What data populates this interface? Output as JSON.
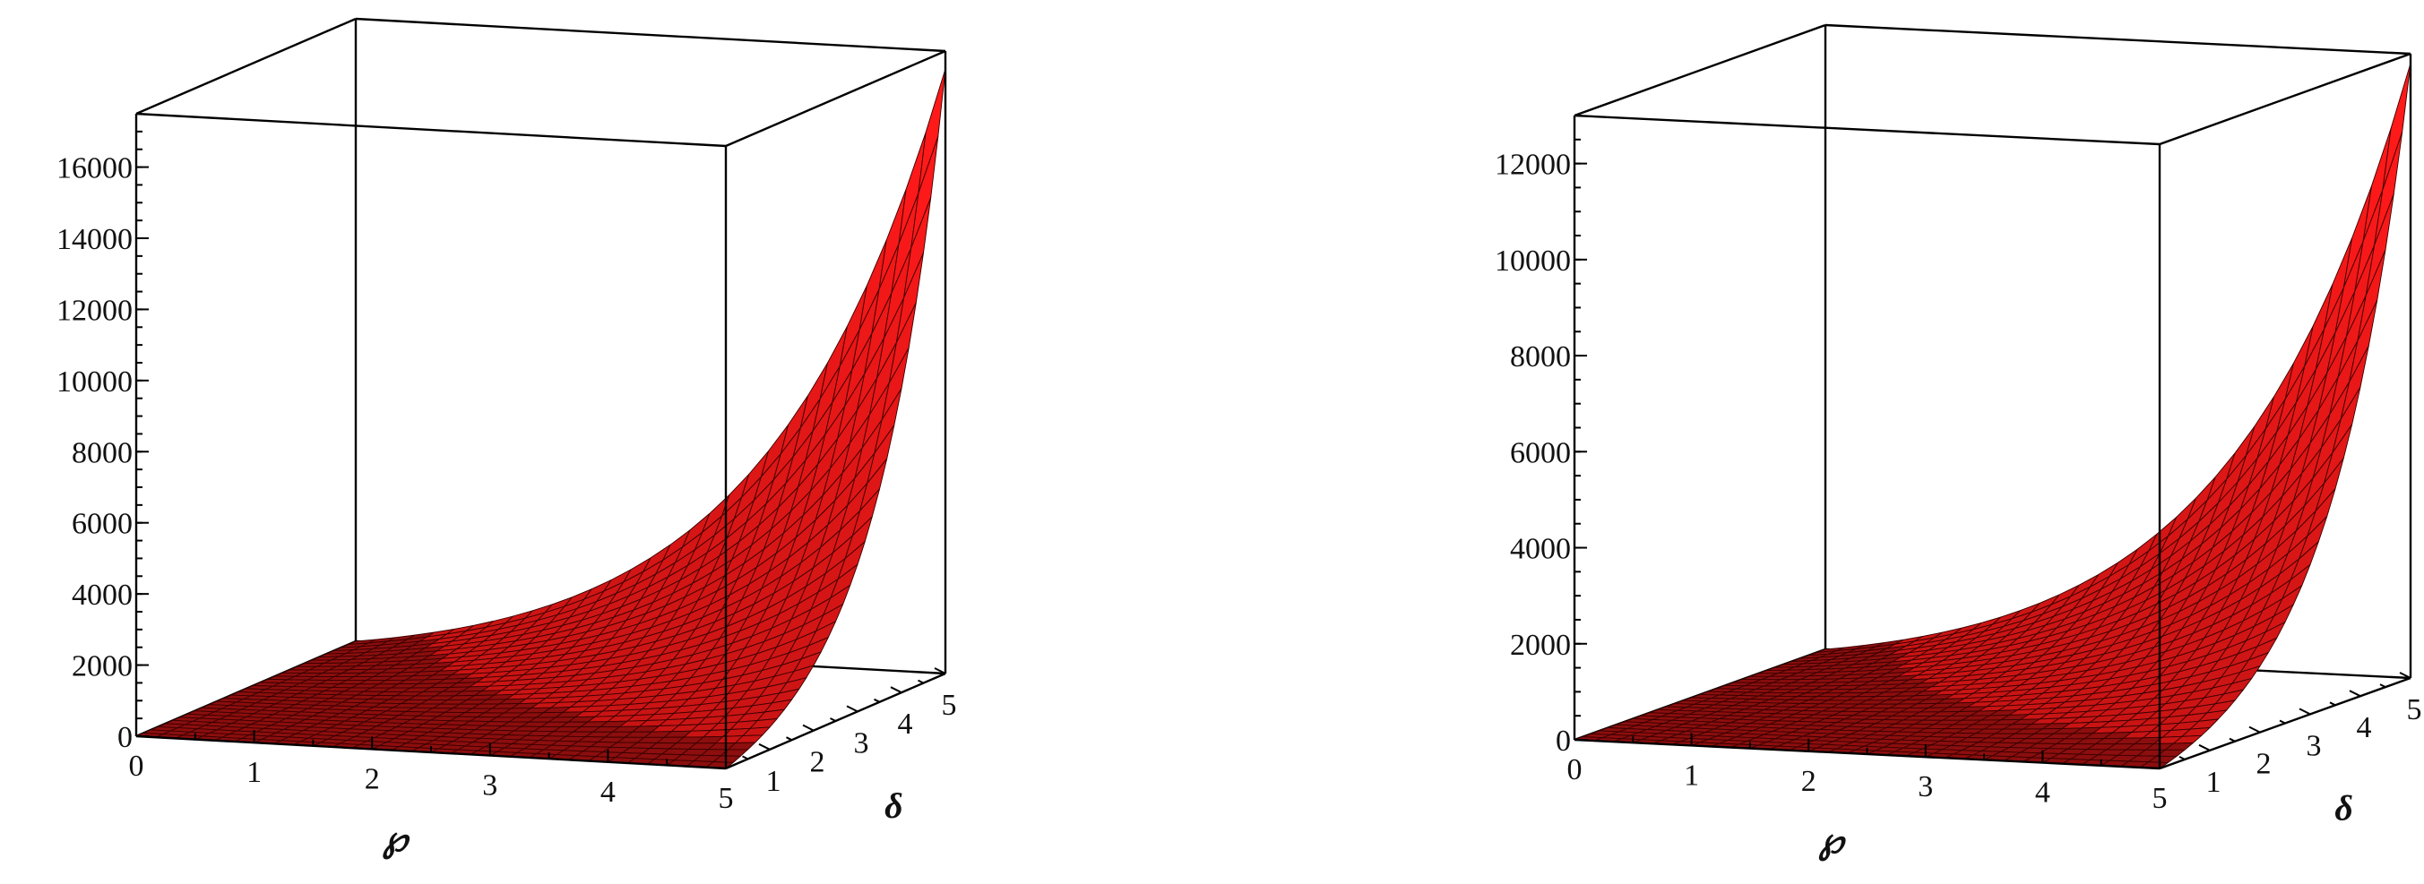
{
  "chart_data": [
    {
      "type": "surface3d",
      "xlabel": "℘",
      "ylabel": "δ",
      "zlabel": "",
      "xlim": [
        0,
        5
      ],
      "ylim": [
        0,
        5
      ],
      "zlim": [
        0,
        17500
      ],
      "x_ticks": [
        "0",
        "1",
        "2",
        "3",
        "4",
        "5"
      ],
      "y_ticks": [
        "1",
        "2",
        "3",
        "4",
        "5"
      ],
      "z_ticks": [
        "0",
        "2000",
        "4000",
        "6000",
        "8000",
        "10000",
        "12000",
        "14000",
        "16000"
      ],
      "surface_color": "#e82020",
      "mesh_color": "#3a0000",
      "box": true,
      "surface": {
        "z_min": 0,
        "z_max": 17000,
        "values_at_x5": [
          {
            "y": 0,
            "z": 0
          },
          {
            "y": 1,
            "z": 560
          },
          {
            "y": 2,
            "z": 2130
          },
          {
            "y": 3,
            "z": 4880
          },
          {
            "y": 4,
            "z": 8840
          },
          {
            "y": 5,
            "z": 17000
          }
        ]
      }
    },
    {
      "type": "surface3d",
      "xlabel": "℘",
      "ylabel": "δ",
      "zlabel": "",
      "xlim": [
        0,
        5
      ],
      "ylim": [
        0,
        5
      ],
      "zlim": [
        0,
        13000
      ],
      "x_ticks": [
        "0",
        "1",
        "2",
        "3",
        "4",
        "5"
      ],
      "y_ticks": [
        "1",
        "2",
        "3",
        "4",
        "5"
      ],
      "z_ticks": [
        "0",
        "2000",
        "4000",
        "6000",
        "8000",
        "10000",
        "12000"
      ],
      "surface_color": "#e82020",
      "mesh_color": "#3a0000",
      "box": true,
      "surface": {
        "z_min": 0,
        "z_max": 12800,
        "values_at_x5": [
          {
            "y": 0,
            "z": 0
          },
          {
            "y": 1,
            "z": 270
          },
          {
            "y": 2,
            "z": 1180
          },
          {
            "y": 3,
            "z": 3050
          },
          {
            "y": 4,
            "z": 6300
          },
          {
            "y": 5,
            "z": 12800
          }
        ]
      }
    }
  ]
}
